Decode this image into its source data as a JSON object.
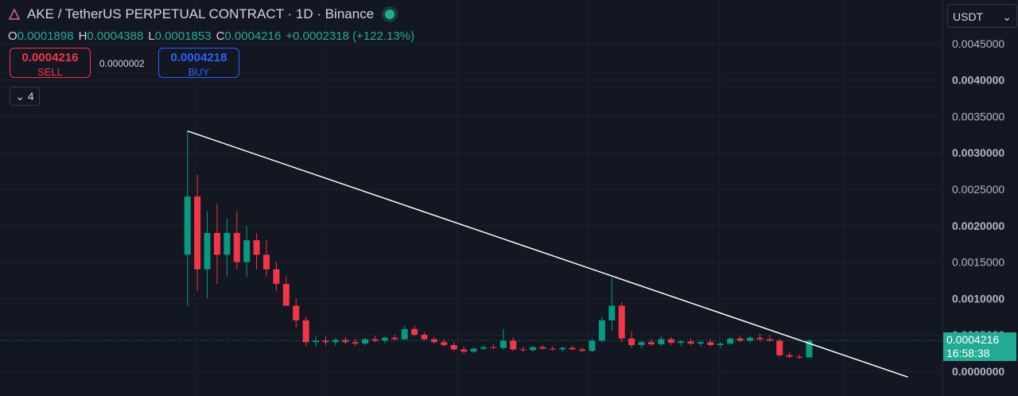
{
  "chart_data": {
    "type": "candlestick",
    "title": "AKE / TetherUS PERPETUAL CONTRACT · 1D · Binance",
    "ohlc_legend": [
      {
        "key": "O",
        "value": "0.0001898"
      },
      {
        "key": "H",
        "value": "0.0004388"
      },
      {
        "key": "L",
        "value": "0.0001853"
      },
      {
        "key": "C",
        "value": "0.0004216"
      }
    ],
    "change": "+0.0002318 (+122.13%)",
    "sell": {
      "price": "0.0004216",
      "label": "SELL"
    },
    "spread": "0.0000002",
    "buy": {
      "price": "0.0004218",
      "label": "BUY"
    },
    "indicators_dropdown": "4",
    "currency": "USDT",
    "price_tag": {
      "value": 0.0004216,
      "label": "0.0004216",
      "countdown": "16:58:38"
    },
    "up_color": "#089981",
    "down_color": "#f23645",
    "xlim": [
      -19,
      76.5
    ],
    "ylim": [
      -0.00034,
      0.0051
    ],
    "yticks": [
      {
        "value": 0,
        "label": "0.0000000"
      },
      {
        "value": 0.0005,
        "label": "0.0005000"
      },
      {
        "value": 0.001,
        "label": "0.0010000"
      },
      {
        "value": 0.0015,
        "label": "0.0015000"
      },
      {
        "value": 0.002,
        "label": "0.0020000"
      },
      {
        "value": 0.0025,
        "label": "0.0025000"
      },
      {
        "value": 0.003,
        "label": "0.0030000"
      },
      {
        "value": 0.0035,
        "label": "0.0035000"
      },
      {
        "value": 0.004,
        "label": "0.0040000"
      },
      {
        "value": 0.0045,
        "label": "0.0045000"
      }
    ],
    "grid": true,
    "open": [
      0.0016,
      0.0024,
      0.0014,
      0.0019,
      0.0016,
      0.0019,
      0.0015,
      0.0018,
      0.0016,
      0.0014,
      0.0012,
      0.0009,
      0.0007,
      0.0004,
      0.00042,
      0.0004,
      0.00043,
      0.0004,
      0.00038,
      0.00044,
      0.00042,
      0.00046,
      0.00044,
      0.00058,
      0.0005,
      0.00044,
      0.0004,
      0.00036,
      0.0003,
      0.00027,
      0.00031,
      0.00033,
      0.00032,
      0.00042,
      0.0003,
      0.00029,
      0.00033,
      0.00031,
      0.0003,
      0.00032,
      0.0003,
      0.00028,
      0.00042,
      0.0007,
      0.0009,
      0.00045,
      0.00036,
      0.0004,
      0.00037,
      0.00044,
      0.00039,
      0.00041,
      0.00038,
      0.0004,
      0.00036,
      0.00038,
      0.00045,
      0.00042,
      0.00046,
      0.00044,
      0.00042,
      0.00022,
      0.0002,
      0.0001898
    ],
    "high": [
      0.0033,
      0.0027,
      0.0022,
      0.0023,
      0.0021,
      0.0022,
      0.002,
      0.0019,
      0.0018,
      0.0015,
      0.0013,
      0.001,
      0.00075,
      0.00048,
      0.00048,
      0.00046,
      0.00047,
      0.00045,
      0.00046,
      0.00049,
      0.00048,
      0.0005,
      0.00062,
      0.00062,
      0.00054,
      0.00047,
      0.00044,
      0.0004,
      0.00034,
      0.00033,
      0.00036,
      0.00037,
      0.00058,
      0.00046,
      0.00034,
      0.00035,
      0.00036,
      0.00034,
      0.00034,
      0.00035,
      0.00033,
      0.00045,
      0.00075,
      0.00128,
      0.00095,
      0.00055,
      0.00042,
      0.00044,
      0.00048,
      0.00047,
      0.00043,
      0.00045,
      0.00042,
      0.00044,
      0.0004,
      0.00047,
      0.00049,
      0.00048,
      0.00052,
      0.0005,
      0.00045,
      0.00026,
      0.00023,
      0.0004388
    ],
    "low": [
      0.0009,
      0.0011,
      0.001,
      0.0012,
      0.0013,
      0.0014,
      0.0013,
      0.0014,
      0.0013,
      0.0011,
      0.0009,
      0.0006,
      0.00035,
      0.00034,
      0.00036,
      0.00035,
      0.00037,
      0.00035,
      0.00036,
      0.0004,
      0.00038,
      0.00042,
      0.00042,
      0.00048,
      0.00042,
      0.00038,
      0.00034,
      0.00028,
      0.00024,
      0.00025,
      0.00029,
      0.0003,
      0.0003,
      0.00028,
      0.00026,
      0.00027,
      0.0003,
      0.00028,
      0.00027,
      0.00029,
      0.00026,
      0.00026,
      0.0004,
      0.00055,
      0.0004,
      0.00032,
      0.00032,
      0.00035,
      0.00035,
      0.00036,
      0.00035,
      0.00036,
      0.00034,
      0.00034,
      0.00032,
      0.00036,
      0.0004,
      0.00039,
      0.00041,
      0.0004,
      0.0002,
      0.00018,
      0.00017,
      0.0001853
    ],
    "close": [
      0.0024,
      0.0014,
      0.0019,
      0.0016,
      0.0019,
      0.0015,
      0.0018,
      0.0016,
      0.0014,
      0.0012,
      0.0009,
      0.0007,
      0.0004,
      0.00042,
      0.0004,
      0.00043,
      0.0004,
      0.00038,
      0.00044,
      0.00042,
      0.00046,
      0.00044,
      0.00058,
      0.0005,
      0.00044,
      0.0004,
      0.00036,
      0.0003,
      0.00027,
      0.00031,
      0.00033,
      0.00032,
      0.00042,
      0.0003,
      0.00029,
      0.00033,
      0.00031,
      0.0003,
      0.00032,
      0.0003,
      0.00028,
      0.00042,
      0.0007,
      0.0009,
      0.00045,
      0.00036,
      0.0004,
      0.00037,
      0.00044,
      0.00039,
      0.00041,
      0.00038,
      0.0004,
      0.00036,
      0.00038,
      0.00045,
      0.00042,
      0.00046,
      0.00044,
      0.00042,
      0.00022,
      0.0002,
      0.0001898,
      0.0004216
    ],
    "trendline": {
      "x": [
        0,
        73
      ],
      "values": [
        0.0033,
        -8e-05
      ],
      "color": "#ffffff"
    }
  }
}
